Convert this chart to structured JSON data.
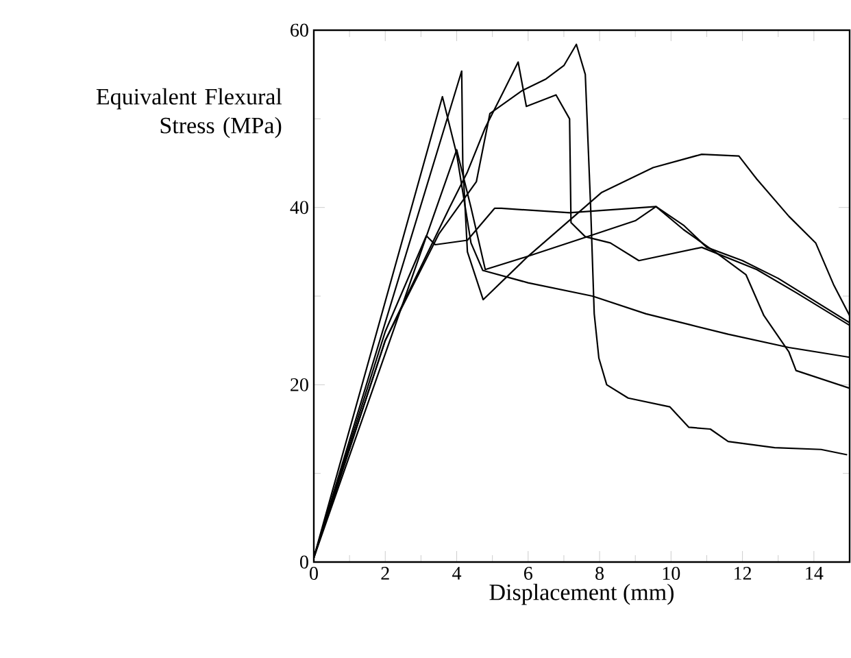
{
  "chart_data": {
    "type": "line",
    "xlabel": "Displacement (mm)",
    "ylabel": "Equivalent Flexural Stress (MPa)",
    "xlim": [
      0,
      15
    ],
    "ylim": [
      0,
      60
    ],
    "xticks": [
      0,
      2,
      4,
      6,
      8,
      10,
      12,
      14
    ],
    "yticks": [
      0,
      20,
      40,
      60
    ],
    "marker": "none",
    "line_style": "solid",
    "grid": false,
    "series": [
      {
        "color": "#000000",
        "x": [
          0,
          3.6,
          4.0,
          4.4,
          4.73,
          6,
          7.8,
          9.3,
          10.5,
          11.6,
          13.3,
          15
        ],
        "values": [
          0.5,
          52.5,
          46,
          36,
          32.9,
          31.5,
          30,
          28,
          26.8,
          25.7,
          24.2,
          23.1
        ]
      },
      {
        "color": "#000000",
        "x": [
          0,
          4.14,
          4.17,
          4.3,
          4.74,
          6,
          8.06,
          9.5,
          10.86,
          11.9,
          12.4,
          13.3,
          14.05,
          14.55,
          15
        ],
        "values": [
          0.5,
          55.4,
          45,
          35,
          29.6,
          34.5,
          41.7,
          44.5,
          46,
          45.8,
          43.2,
          39,
          36,
          31.3,
          27.8
        ]
      },
      {
        "color": "#000000",
        "x": [
          0,
          4.0,
          4.4,
          4.8,
          6,
          7.5,
          9,
          9.58,
          10.35,
          11.4,
          12.1,
          12.6,
          13.3,
          13.5,
          15
        ],
        "values": [
          0.5,
          46.5,
          40,
          33,
          34.5,
          36.5,
          38.5,
          40.1,
          37.5,
          34.5,
          32.4,
          27.8,
          23.7,
          21.6,
          19.6
        ]
      },
      {
        "color": "#000000",
        "x": [
          0,
          2,
          3.15,
          3.4,
          4.3,
          5.06,
          5.25,
          7.16,
          9.58,
          10.35,
          11,
          12,
          13,
          14,
          15
        ],
        "values": [
          0.5,
          26,
          36.8,
          35.8,
          36.3,
          39.9,
          39.9,
          39.4,
          40.1,
          38,
          35.5,
          34,
          32,
          29.5,
          27
        ]
      },
      {
        "color": "#000000",
        "x": [
          0,
          2,
          3.8,
          4.3,
          4.8,
          5.3,
          5.72,
          5.95,
          6.78,
          7.16,
          7.2,
          7.6,
          8.3,
          9.1,
          10.86,
          12.4,
          13.5,
          15
        ],
        "values": [
          0.5,
          25,
          40,
          44,
          49,
          53,
          56.4,
          51.4,
          52.7,
          50,
          38.3,
          36.7,
          36,
          34,
          35.5,
          33,
          30.4,
          26.7
        ]
      },
      {
        "color": "#000000",
        "x": [
          0,
          2,
          3.5,
          4.55,
          4.93,
          5.84,
          6.5,
          7.0,
          7.35,
          7.6,
          7.75,
          7.85,
          7.98,
          8.2,
          8.8,
          9.97,
          10.5,
          11.1,
          11.6,
          12.9,
          14.2,
          14.93
        ],
        "values": [
          0.5,
          25,
          37,
          42.9,
          50.6,
          53.2,
          54.5,
          56,
          58.4,
          55,
          40,
          28,
          23,
          20,
          18.5,
          17.5,
          15.2,
          15,
          13.6,
          12.9,
          12.7,
          12.1
        ]
      }
    ]
  }
}
